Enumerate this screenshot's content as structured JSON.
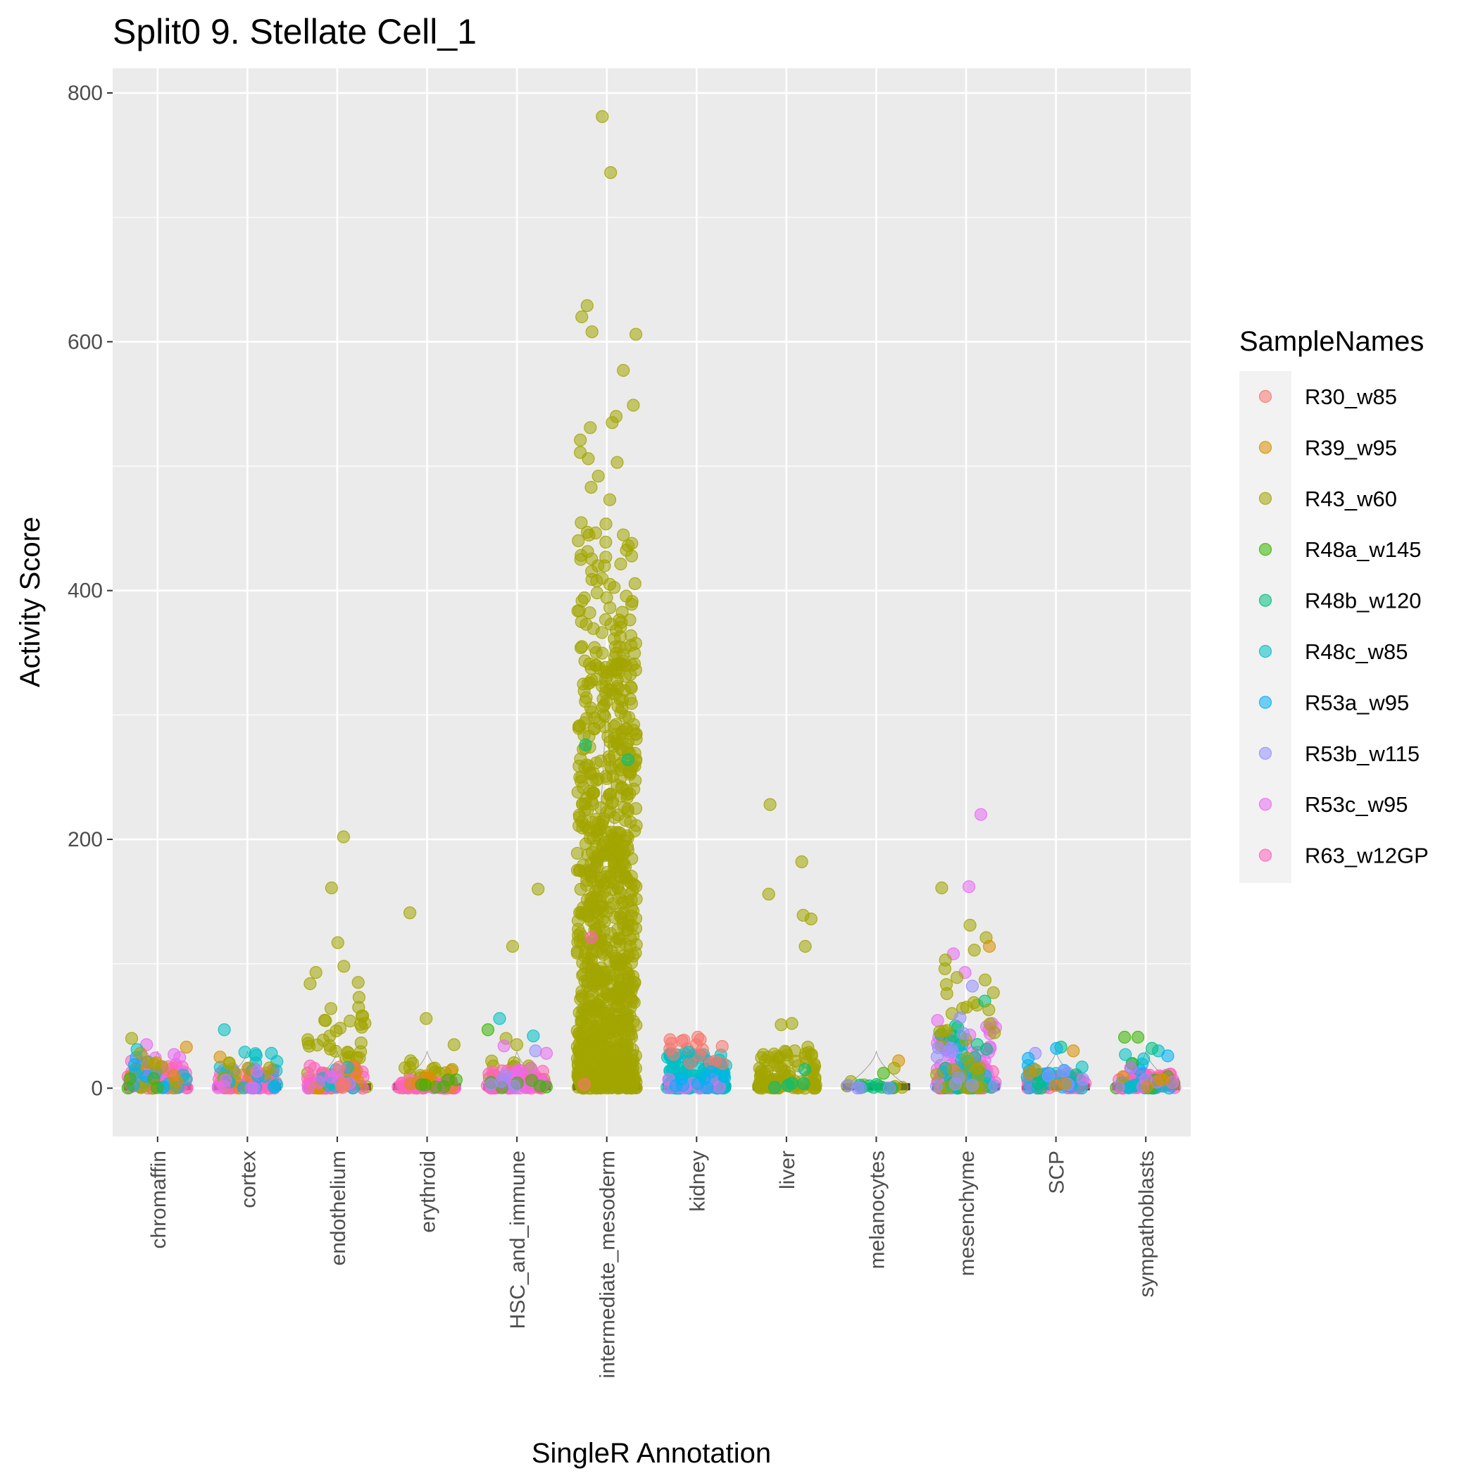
{
  "chart_data": {
    "type": "scatter",
    "subtype": "jittered strip plot with violin outlines",
    "title": "Split0 9. Stellate Cell_1",
    "xlabel": "SingleR Annotation",
    "ylabel": "Activity Score",
    "ylim": [
      -38,
      820
    ],
    "yticks": [
      0,
      200,
      400,
      600,
      800
    ],
    "grid": true,
    "legend": {
      "title": "SampleNames",
      "position": "right"
    },
    "categories": [
      "chromaffin",
      "cortex",
      "endothelium",
      "erythroid",
      "HSC_and_immune",
      "intermediate_mesoderm",
      "kidney",
      "liver",
      "melanocytes",
      "mesenchyme",
      "SCP",
      "sympathoblasts"
    ],
    "series": [
      {
        "name": "R30_w85",
        "color": "#F8766D"
      },
      {
        "name": "R39_w95",
        "color": "#D89000"
      },
      {
        "name": "R43_w60",
        "color": "#A3A500"
      },
      {
        "name": "R48a_w145",
        "color": "#39B600"
      },
      {
        "name": "R48b_w120",
        "color": "#00BF7D"
      },
      {
        "name": "R48c_w85",
        "color": "#00BFC4"
      },
      {
        "name": "R53a_w95",
        "color": "#00B0F6"
      },
      {
        "name": "R53b_w115",
        "color": "#9590FF"
      },
      {
        "name": "R53c_w95",
        "color": "#E76BF3"
      },
      {
        "name": "R63_w12GP",
        "color": "#FF62BC"
      }
    ],
    "groups": [
      {
        "category": "chromaffin",
        "bulk": [
          [
            "R63_w12GP",
            0,
            22,
            60
          ],
          [
            "R53c_w95",
            0,
            30,
            14
          ],
          [
            "R48c_w85",
            0,
            30,
            10
          ],
          [
            "R39_w95",
            0,
            25,
            6
          ],
          [
            "R43_w60",
            0,
            28,
            6
          ],
          [
            "R53a_w95",
            0,
            25,
            6
          ],
          [
            "R48a_w145",
            0,
            15,
            4
          ]
        ],
        "outliers": [
          [
            "R43_w60",
            40
          ],
          [
            "R39_w95",
            33
          ],
          [
            "R53c_w95",
            35
          ],
          [
            "R48c_w85",
            31
          ],
          [
            "R43_w60",
            28
          ]
        ]
      },
      {
        "category": "cortex",
        "bulk": [
          [
            "R63_w12GP",
            0,
            16,
            60
          ],
          [
            "R48c_w85",
            0,
            28,
            14
          ],
          [
            "R39_w95",
            0,
            24,
            8
          ],
          [
            "R43_w60",
            0,
            22,
            6
          ],
          [
            "R53a_w95",
            0,
            20,
            6
          ],
          [
            "R53c_w95",
            0,
            18,
            6
          ]
        ],
        "outliers": [
          [
            "R48c_w85",
            47
          ],
          [
            "R48c_w85",
            29
          ],
          [
            "R39_w95",
            25
          ],
          [
            "R48c_w85",
            28
          ]
        ]
      },
      {
        "category": "endothelium",
        "bulk": [
          [
            "R43_w60",
            0,
            60,
            45
          ],
          [
            "R63_w12GP",
            0,
            18,
            60
          ],
          [
            "R39_w95",
            0,
            28,
            10
          ],
          [
            "R48c_w85",
            0,
            25,
            8
          ],
          [
            "R53c_w95",
            0,
            20,
            6
          ],
          [
            "R30_w85",
            0,
            20,
            4
          ]
        ],
        "outliers": [
          [
            "R43_w60",
            202
          ],
          [
            "R43_w60",
            161
          ],
          [
            "R43_w60",
            117
          ],
          [
            "R43_w60",
            98
          ],
          [
            "R43_w60",
            93
          ],
          [
            "R43_w60",
            85
          ],
          [
            "R43_w60",
            84
          ],
          [
            "R43_w60",
            73
          ],
          [
            "R43_w60",
            65
          ],
          [
            "R43_w60",
            64
          ],
          [
            "R43_w60",
            54
          ],
          [
            "R43_w60",
            49
          ],
          [
            "R43_w60",
            46
          ],
          [
            "R43_w60",
            42
          ],
          [
            "R43_w60",
            39
          ]
        ]
      },
      {
        "category": "erythroid",
        "bulk": [
          [
            "R43_w60",
            0,
            18,
            25
          ],
          [
            "R63_w12GP",
            0,
            8,
            50
          ],
          [
            "R39_w95",
            0,
            14,
            8
          ],
          [
            "R48a_w145",
            0,
            12,
            6
          ]
        ],
        "outliers": [
          [
            "R43_w60",
            141
          ],
          [
            "R43_w60",
            56
          ],
          [
            "R43_w60",
            35
          ],
          [
            "R43_w60",
            22
          ],
          [
            "R43_w60",
            20
          ]
        ]
      },
      {
        "category": "HSC_and_immune",
        "bulk": [
          [
            "R43_w60",
            0,
            22,
            20
          ],
          [
            "R63_w12GP",
            0,
            14,
            60
          ],
          [
            "R53c_w95",
            0,
            25,
            8
          ],
          [
            "R48a_w145",
            0,
            20,
            6
          ],
          [
            "R53b_w115",
            0,
            25,
            4
          ]
        ],
        "outliers": [
          [
            "R43_w60",
            160
          ],
          [
            "R43_w60",
            114
          ],
          [
            "R48c_w85",
            56
          ],
          [
            "R48a_w145",
            47
          ],
          [
            "R48c_w85",
            42
          ],
          [
            "R43_w60",
            40
          ],
          [
            "R43_w60",
            35
          ],
          [
            "R53c_w95",
            34
          ],
          [
            "R53b_w115",
            30
          ],
          [
            "R53c_w95",
            28
          ]
        ]
      },
      {
        "category": "intermediate_mesoderm",
        "bulk": [
          [
            "R43_w60",
            0,
            340,
            900
          ],
          [
            "R43_w60",
            340,
            460,
            80
          ]
        ],
        "outliers": [
          [
            "R43_w60",
            781
          ],
          [
            "R43_w60",
            736
          ],
          [
            "R43_w60",
            629
          ],
          [
            "R43_w60",
            620
          ],
          [
            "R43_w60",
            608
          ],
          [
            "R43_w60",
            606
          ],
          [
            "R43_w60",
            577
          ],
          [
            "R43_w60",
            549
          ],
          [
            "R43_w60",
            540
          ],
          [
            "R43_w60",
            535
          ],
          [
            "R43_w60",
            531
          ],
          [
            "R43_w60",
            521
          ],
          [
            "R43_w60",
            511
          ],
          [
            "R43_w60",
            506
          ],
          [
            "R43_w60",
            503
          ],
          [
            "R43_w60",
            492
          ],
          [
            "R43_w60",
            483
          ],
          [
            "R43_w60",
            473
          ],
          [
            "R48b_w120",
            276
          ],
          [
            "R48b_w120",
            264
          ],
          [
            "R63_w12GP",
            121
          ],
          [
            "R30_w85",
            3
          ]
        ]
      },
      {
        "category": "kidney",
        "bulk": [
          [
            "R48c_w85",
            0,
            28,
            150
          ],
          [
            "R30_w85",
            20,
            40,
            12
          ],
          [
            "R53c_w95",
            0,
            10,
            10
          ],
          [
            "R53a_w95",
            0,
            15,
            8
          ]
        ],
        "outliers": [
          [
            "R30_w85",
            41
          ],
          [
            "R30_w85",
            39
          ],
          [
            "R30_w85",
            36
          ],
          [
            "R30_w85",
            35
          ],
          [
            "R30_w85",
            31
          ],
          [
            "R48c_w85",
            29
          ]
        ]
      },
      {
        "category": "liver",
        "bulk": [
          [
            "R43_w60",
            0,
            30,
            100
          ],
          [
            "R48b_w120",
            0,
            15,
            4
          ]
        ],
        "outliers": [
          [
            "R43_w60",
            228
          ],
          [
            "R43_w60",
            182
          ],
          [
            "R43_w60",
            156
          ],
          [
            "R43_w60",
            139
          ],
          [
            "R43_w60",
            136
          ],
          [
            "R43_w60",
            114
          ],
          [
            "R43_w60",
            52
          ],
          [
            "R43_w60",
            51
          ],
          [
            "R43_w60",
            33
          ],
          [
            "R43_w60",
            30
          ],
          [
            "R48b_w120",
            15
          ]
        ]
      },
      {
        "category": "melanocytes",
        "bulk": [
          [
            "R43_w60",
            0,
            8,
            8
          ],
          [
            "R48b_w120",
            0,
            5,
            8
          ],
          [
            "R53b_w115",
            0,
            3,
            4
          ]
        ],
        "outliers": [
          [
            "R39_w95",
            22
          ],
          [
            "R43_w60",
            16
          ],
          [
            "R48a_w145",
            12
          ]
        ]
      },
      {
        "category": "mesenchyme",
        "bulk": [
          [
            "R63_w12GP",
            0,
            20,
            60
          ],
          [
            "R53c_w95",
            0,
            55,
            60
          ],
          [
            "R48b_w120",
            0,
            55,
            25
          ],
          [
            "R48c_w85",
            0,
            45,
            15
          ],
          [
            "R43_w60",
            0,
            90,
            30
          ],
          [
            "R53b_w115",
            0,
            60,
            12
          ]
        ],
        "outliers": [
          [
            "R53c_w95",
            220
          ],
          [
            "R53c_w95",
            162
          ],
          [
            "R43_w60",
            161
          ],
          [
            "R43_w60",
            131
          ],
          [
            "R43_w60",
            121
          ],
          [
            "R39_w95",
            114
          ],
          [
            "R43_w60",
            111
          ],
          [
            "R53c_w95",
            108
          ],
          [
            "R43_w60",
            103
          ],
          [
            "R43_w60",
            96
          ],
          [
            "R53c_w95",
            93
          ],
          [
            "R43_w60",
            89
          ],
          [
            "R43_w60",
            87
          ],
          [
            "R53b_w115",
            82
          ],
          [
            "R43_w60",
            76
          ],
          [
            "R48b_w120",
            70
          ],
          [
            "R43_w60",
            63
          ]
        ]
      },
      {
        "category": "SCP",
        "bulk": [
          [
            "R63_w12GP",
            0,
            12,
            50
          ],
          [
            "R53a_w95",
            0,
            25,
            15
          ],
          [
            "R48c_w85",
            0,
            20,
            6
          ],
          [
            "R48b_w120",
            0,
            20,
            4
          ],
          [
            "R53b_w115",
            0,
            25,
            4
          ],
          [
            "R39_w95",
            0,
            20,
            4
          ]
        ],
        "outliers": [
          [
            "R48b_w120",
            33
          ],
          [
            "R53a_w95",
            32
          ],
          [
            "R39_w95",
            30
          ],
          [
            "R53b_w115",
            28
          ],
          [
            "R53a_w95",
            24
          ]
        ]
      },
      {
        "category": "sympathoblasts",
        "bulk": [
          [
            "R63_w12GP",
            0,
            12,
            60
          ],
          [
            "R53a_w95",
            0,
            20,
            12
          ],
          [
            "R48c_w85",
            0,
            25,
            10
          ],
          [
            "R48a_w145",
            0,
            20,
            6
          ],
          [
            "R53c_w95",
            0,
            18,
            6
          ],
          [
            "R39_w95",
            0,
            15,
            4
          ]
        ],
        "outliers": [
          [
            "R48a_w145",
            41
          ],
          [
            "R48a_w145",
            41
          ],
          [
            "R48c_w85",
            30
          ],
          [
            "R48b_w120",
            32
          ],
          [
            "R53a_w95",
            26
          ],
          [
            "R48c_w85",
            27
          ]
        ]
      }
    ]
  }
}
